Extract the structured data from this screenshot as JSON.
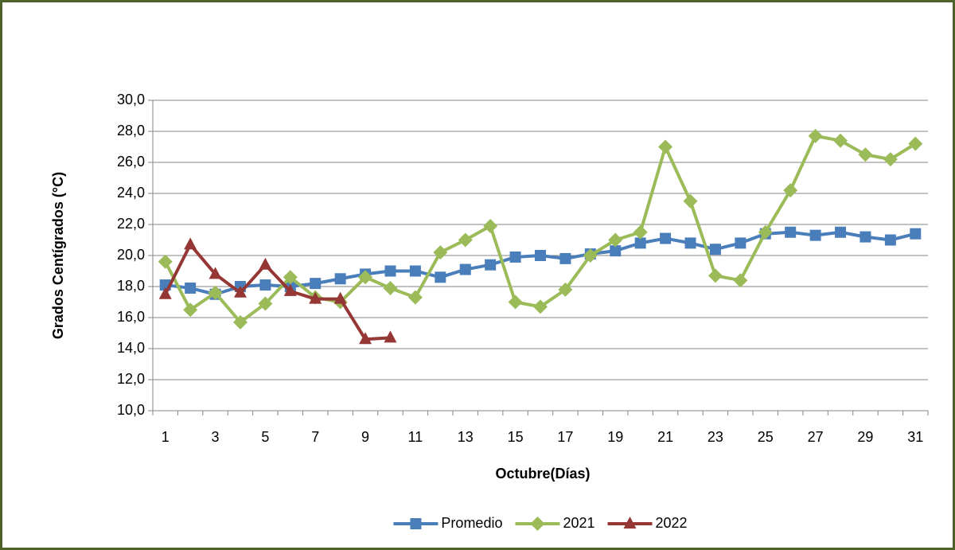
{
  "chart_data": {
    "type": "line",
    "x_label": "Octubre(Días)",
    "y_label": "Grados Centígrados (°C)",
    "categories": [
      "1",
      null,
      "3",
      null,
      "5",
      null,
      "7",
      null,
      "9",
      null,
      "11",
      null,
      "13",
      null,
      "15",
      null,
      "17",
      null,
      "19",
      null,
      "21",
      null,
      "23",
      null,
      "25",
      null,
      "27",
      null,
      "29",
      null,
      "31"
    ],
    "series": [
      {
        "name": "Promedio",
        "color": "#4a7ebb",
        "marker": "square",
        "values": [
          18.1,
          17.9,
          17.5,
          18.0,
          18.1,
          18.0,
          18.2,
          18.5,
          18.8,
          19.0,
          19.0,
          18.6,
          19.1,
          19.4,
          19.9,
          20.0,
          19.8,
          20.1,
          20.3,
          20.8,
          21.1,
          20.8,
          20.4,
          20.8,
          21.4,
          21.5,
          21.3,
          21.5,
          21.2,
          21.0,
          21.4
        ]
      },
      {
        "name": "2021",
        "color": "#9bbb59",
        "marker": "diamond",
        "values": [
          19.6,
          16.5,
          17.6,
          15.7,
          16.9,
          18.6,
          17.3,
          17.0,
          18.6,
          17.9,
          17.3,
          20.2,
          21.0,
          21.9,
          17.0,
          16.7,
          17.8,
          20.0,
          21.0,
          21.5,
          27.0,
          23.5,
          18.7,
          18.4,
          21.5,
          24.2,
          27.7,
          27.4,
          26.5,
          26.2,
          27.2
        ]
      },
      {
        "name": "2022",
        "color": "#953735",
        "marker": "triangle",
        "values": [
          17.5,
          20.7,
          18.8,
          17.6,
          19.4,
          17.7,
          17.2,
          17.2,
          14.6,
          14.7,
          null,
          null,
          null,
          null,
          null,
          null,
          null,
          null,
          null,
          null,
          null,
          null,
          null,
          null,
          null,
          null,
          null,
          null,
          null,
          null,
          null
        ]
      }
    ],
    "ylim": [
      10,
      30
    ],
    "yticks": [
      {
        "value": 10,
        "label": "10,0"
      },
      {
        "value": 12,
        "label": "12,0"
      },
      {
        "value": 14,
        "label": "14,0"
      },
      {
        "value": 16,
        "label": "16,0"
      },
      {
        "value": 18,
        "label": "18,0"
      },
      {
        "value": 20,
        "label": "20,0"
      },
      {
        "value": 22,
        "label": "22,0"
      },
      {
        "value": 24,
        "label": "24,0"
      },
      {
        "value": 26,
        "label": "26,0"
      },
      {
        "value": 28,
        "label": "28,0"
      },
      {
        "value": 30,
        "label": "30,0"
      }
    ],
    "grid": true,
    "legend": "bottom"
  }
}
